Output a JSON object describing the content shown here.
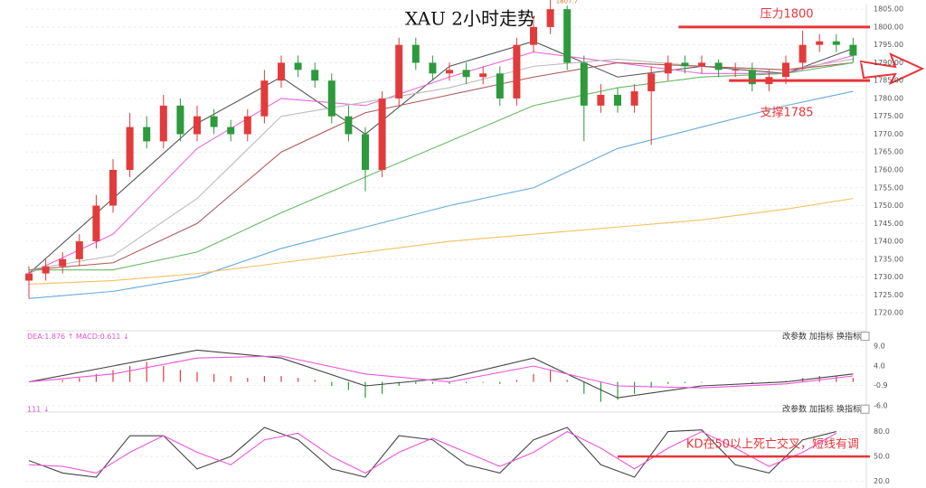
{
  "chart_data": [
    {
      "type": "candlestick",
      "title": "XAU 2小时走势",
      "open": [
        1729,
        1731,
        1733,
        1735,
        1740,
        1750,
        1760,
        1772,
        1768,
        1778,
        1770,
        1775,
        1772,
        1770,
        1775,
        1785,
        1790,
        1788,
        1785,
        1775,
        1770,
        1760,
        1780,
        1795,
        1790,
        1787,
        1788,
        1786,
        1787,
        1780,
        1795,
        1800,
        1805,
        1790,
        1778,
        1781,
        1778,
        1782,
        1787,
        1790,
        1789,
        1790,
        1788,
        1788,
        1784,
        1786,
        1790,
        1795,
        1796,
        1795
      ],
      "high": [
        1733,
        1735,
        1737,
        1742,
        1753,
        1763,
        1776,
        1775,
        1781,
        1780,
        1778,
        1777,
        1774,
        1777,
        1788,
        1792,
        1792,
        1790,
        1787,
        1778,
        1772,
        1782,
        1797,
        1797,
        1792,
        1790,
        1790,
        1789,
        1789,
        1797,
        1803,
        1807.7,
        1806,
        1792,
        1784,
        1783,
        1784,
        1789,
        1792,
        1792,
        1792,
        1791,
        1790,
        1790,
        1788,
        1792,
        1799,
        1798,
        1798,
        1797
      ],
      "low": [
        1724,
        1729,
        1731,
        1733,
        1738,
        1748,
        1758,
        1766,
        1766,
        1768,
        1768,
        1770,
        1768,
        1768,
        1773,
        1783,
        1786,
        1783,
        1773,
        1768,
        1754,
        1758,
        1778,
        1788,
        1785,
        1785,
        1784,
        1784,
        1778,
        1778,
        1793,
        1798,
        1788,
        1768,
        1776,
        1776,
        1776,
        1767,
        1785,
        1787,
        1787,
        1786,
        1786,
        1782,
        1782,
        1784,
        1788,
        1793,
        1793,
        1790
      ],
      "close": [
        1731,
        1733,
        1735,
        1740,
        1750,
        1760,
        1772,
        1768,
        1778,
        1770,
        1775,
        1772,
        1770,
        1775,
        1785,
        1790,
        1788,
        1785,
        1775,
        1770,
        1760,
        1780,
        1795,
        1790,
        1787,
        1788,
        1786,
        1787,
        1780,
        1795,
        1800,
        1805,
        1790,
        1778,
        1781,
        1778,
        1782,
        1787,
        1790,
        1789,
        1790,
        1788,
        1788,
        1784,
        1786,
        1790,
        1795,
        1796,
        1795,
        1792
      ],
      "up_color": "#e23b3b",
      "down_color": "#2d9a3c",
      "high_label": {
        "index": 31,
        "text": "1807.7"
      },
      "ma_x": [
        0,
        5,
        10,
        15,
        20,
        25,
        30,
        35,
        40,
        45,
        49
      ],
      "series": [
        {
          "color": "#555555",
          "values": [
            1731,
            1752,
            1773,
            1786,
            1770,
            1789,
            1796,
            1786,
            1789,
            1787,
            1794
          ]
        },
        {
          "color": "#ee66dd",
          "values": [
            1731,
            1742,
            1766,
            1780,
            1778,
            1786,
            1793,
            1790,
            1787,
            1787,
            1792
          ]
        },
        {
          "color": "#bbbbbb",
          "values": [
            1732,
            1736,
            1752,
            1775,
            1779,
            1783,
            1789,
            1791,
            1789,
            1788,
            1791
          ]
        },
        {
          "color": "#b05a5a",
          "values": [
            1732,
            1734,
            1745,
            1765,
            1776,
            1781,
            1786,
            1790,
            1789,
            1788,
            1790
          ]
        },
        {
          "color": "#66bb66",
          "values": [
            1732,
            1732,
            1737,
            1748,
            1758,
            1768,
            1778,
            1783,
            1786,
            1787,
            1790
          ]
        },
        {
          "color": "#66aadd",
          "values": [
            1724,
            1726,
            1730,
            1738,
            1744,
            1750,
            1755,
            1766,
            1772,
            1778,
            1782
          ]
        },
        {
          "color": "#f5c060",
          "values": [
            1728,
            1729,
            1731,
            1734,
            1737,
            1740,
            1742,
            1744,
            1746,
            1749,
            1752
          ]
        }
      ],
      "levels": [
        {
          "label": "压力1800",
          "value": 1800,
          "start": 39
        },
        {
          "label": "支撑1785",
          "value": 1785,
          "start": 42
        }
      ],
      "level_color": "#e8343a",
      "ylim": [
        1718,
        1806.3
      ],
      "yticks": [
        {
          "value": 1720,
          "label": "1720.00"
        },
        {
          "value": 1725,
          "label": "1725.00"
        },
        {
          "value": 1730,
          "label": "1730.00"
        },
        {
          "value": 1735,
          "label": "1735.00"
        },
        {
          "value": 1740,
          "label": "1740.00"
        },
        {
          "value": 1745,
          "label": "1745.00"
        },
        {
          "value": 1750,
          "label": "1750.00"
        },
        {
          "value": 1755,
          "label": "1755.00"
        },
        {
          "value": 1760,
          "label": "1760.00"
        },
        {
          "value": 1765,
          "label": "1765.00"
        },
        {
          "value": 1770,
          "label": "1770.00"
        },
        {
          "value": 1775,
          "label": "1775.00"
        },
        {
          "value": 1780,
          "label": "1780.00"
        },
        {
          "value": 1785,
          "label": "1785.00"
        },
        {
          "value": 1790,
          "label": "1790.00"
        },
        {
          "value": 1795,
          "label": "1795.00"
        },
        {
          "value": 1800,
          "label": "1800.00"
        },
        {
          "value": 1805,
          "label": "1805.00"
        }
      ],
      "grid": true
    },
    {
      "type": "macd",
      "header": "DEA:1.876 ↑ MACD:0.611 ↓",
      "buttons": [
        "改参数",
        "加指标",
        "换指标"
      ],
      "histogram": [
        0,
        0,
        0.5,
        1,
        2,
        3,
        4,
        5,
        4,
        3,
        2.5,
        2,
        1.5,
        1,
        1.5,
        1.5,
        1,
        0.5,
        -1,
        -2,
        -4,
        -3,
        -1,
        -0.5,
        -0.5,
        -0.5,
        -0.3,
        -0.2,
        -0.5,
        0.5,
        2,
        3,
        0.5,
        -3,
        -5,
        -4.5,
        -3,
        -1.5,
        -0.5,
        -0.3,
        -0.2,
        0,
        0,
        -0.5,
        -0.3,
        0.3,
        1,
        1.5,
        1.5,
        1
      ],
      "pos_color": "#e23b3b",
      "neg_color": "#2d9a3c",
      "line_x": [
        0,
        5,
        10,
        15,
        20,
        25,
        30,
        35,
        40,
        45,
        49
      ],
      "series": [
        {
          "color": "#444444",
          "values": [
            0,
            4,
            8,
            6,
            -1,
            1,
            6,
            -4,
            -1,
            0,
            2
          ]
        },
        {
          "color": "#ee55dd",
          "values": [
            0,
            2,
            6,
            6.5,
            2,
            0,
            4,
            -1,
            -1.5,
            -0.5,
            1.5
          ]
        }
      ],
      "ylim": [
        -7,
        10
      ],
      "yticks": [
        {
          "value": 9,
          "label": "9.0"
        },
        {
          "value": 4,
          "label": "4.0"
        },
        {
          "value": -0.9,
          "label": "-0.9"
        },
        {
          "value": -6,
          "label": "-6.0"
        }
      ],
      "grid": true
    },
    {
      "type": "kd",
      "header": "111 ↓",
      "buttons": [
        "改参数",
        "加指标",
        "换指标"
      ],
      "x": [
        0,
        2,
        4,
        6,
        8,
        10,
        12,
        14,
        16,
        18,
        20,
        22,
        24,
        26,
        28,
        30,
        32,
        34,
        36,
        38,
        40,
        42,
        44,
        46,
        48
      ],
      "series": [
        {
          "color": "#444444",
          "values": [
            45,
            30,
            25,
            75,
            75,
            35,
            50,
            85,
            70,
            35,
            25,
            75,
            70,
            40,
            30,
            70,
            85,
            40,
            25,
            80,
            82,
            40,
            30,
            70,
            80
          ]
        },
        {
          "color": "#ee55dd",
          "values": [
            40,
            38,
            30,
            55,
            75,
            55,
            40,
            70,
            78,
            50,
            30,
            55,
            72,
            55,
            38,
            55,
            80,
            60,
            35,
            60,
            80,
            60,
            38,
            55,
            78
          ]
        }
      ],
      "annotation": {
        "text": "KD在50以上死亡交叉，短线有调",
        "value": 50,
        "start": 35
      },
      "ylim": [
        15,
        100
      ],
      "yticks": [
        {
          "value": 80,
          "label": "80.0"
        },
        {
          "value": 50,
          "label": "50.0"
        },
        {
          "value": 20,
          "label": "20.0"
        }
      ],
      "grid": true
    }
  ]
}
